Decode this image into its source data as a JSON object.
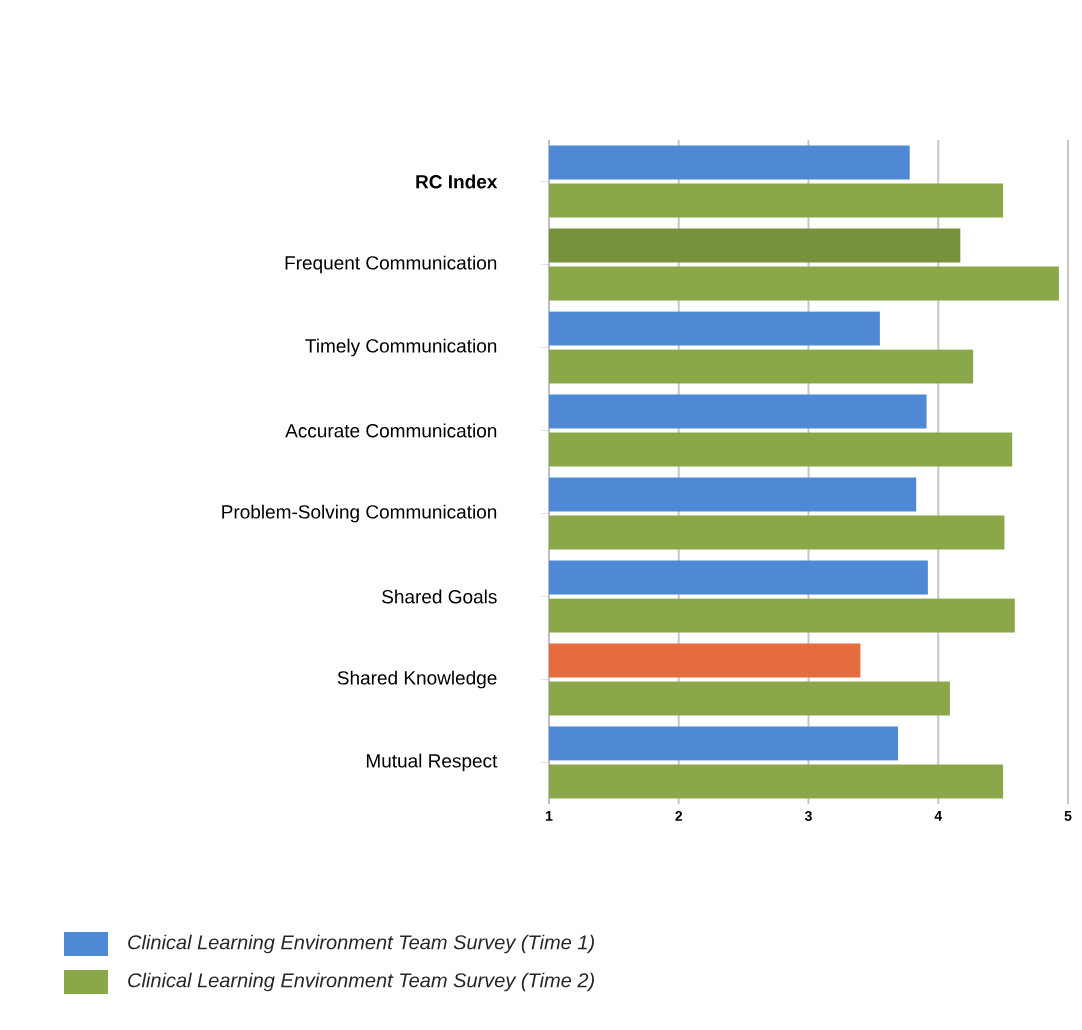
{
  "chart_data": {
    "type": "bar",
    "orientation": "horizontal",
    "categories": [
      "RC Index",
      "Frequent Communication",
      "Timely Communication",
      "Accurate Communication",
      "Problem-Solving Communication",
      "Shared Goals",
      "Shared Knowledge",
      "Mutual Respect"
    ],
    "series": [
      {
        "name": "Clinical Learning Environment Team Survey (Time 1)",
        "colors": [
          "#4f88d4",
          "#76923c",
          "#4f88d4",
          "#4f88d4",
          "#4f88d4",
          "#4f88d4",
          "#e46c3f",
          "#4f88d4"
        ],
        "values": [
          3.78,
          4.17,
          3.55,
          3.91,
          3.83,
          3.92,
          3.4,
          3.69
        ]
      },
      {
        "name": "Clinical Learning Environment Team Survey (Time 2)",
        "color": "#8aa84a",
        "values": [
          4.5,
          4.93,
          4.27,
          4.57,
          4.51,
          4.59,
          4.09,
          4.5
        ]
      }
    ],
    "xlim": [
      1,
      5
    ],
    "xticks": [
      1,
      2,
      3,
      4,
      5
    ],
    "grid": "x",
    "legend": "bottom"
  }
}
